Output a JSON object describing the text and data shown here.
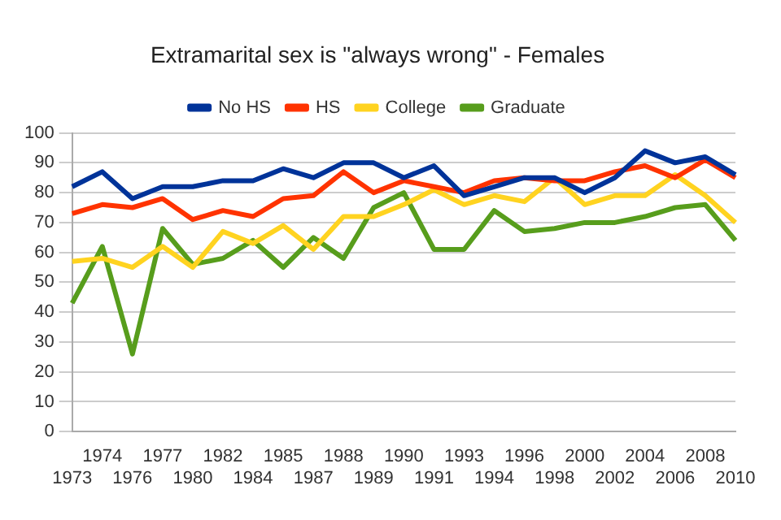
{
  "chart_data": {
    "type": "line",
    "title": "Extramarital sex is \"always wrong\" - Females",
    "categories": [
      "1973",
      "1974",
      "1976",
      "1977",
      "1980",
      "1982",
      "1984",
      "1985",
      "1987",
      "1988",
      "1989",
      "1990",
      "1991",
      "1993",
      "1994",
      "1996",
      "1998",
      "2000",
      "2002",
      "2004",
      "2006",
      "2008",
      "2010"
    ],
    "series": [
      {
        "name": "No HS",
        "color": "#003399",
        "values": [
          82,
          87,
          78,
          82,
          82,
          84,
          84,
          88,
          85,
          90,
          90,
          85,
          89,
          79,
          82,
          85,
          85,
          80,
          85,
          94,
          90,
          92,
          86
        ]
      },
      {
        "name": "HS",
        "color": "#ff3300",
        "values": [
          73,
          76,
          75,
          78,
          71,
          74,
          72,
          78,
          79,
          87,
          80,
          84,
          82,
          80,
          84,
          85,
          84,
          84,
          87,
          89,
          85,
          91,
          85
        ]
      },
      {
        "name": "College",
        "color": "#ffd320",
        "values": [
          57,
          58,
          55,
          62,
          55,
          67,
          63,
          69,
          61,
          72,
          72,
          76,
          81,
          76,
          79,
          77,
          85,
          76,
          79,
          79,
          86,
          79,
          70
        ]
      },
      {
        "name": "Graduate",
        "color": "#579d1c",
        "values": [
          43,
          62,
          26,
          68,
          56,
          58,
          64,
          55,
          65,
          58,
          75,
          80,
          61,
          61,
          74,
          67,
          68,
          70,
          70,
          72,
          75,
          76,
          64
        ]
      }
    ],
    "ylim": [
      0,
      100
    ],
    "yticks": [
      0,
      10,
      20,
      30,
      40,
      50,
      60,
      70,
      80,
      90,
      100
    ],
    "grid": "y",
    "legend": "top",
    "marker": "none",
    "line_style": "solid"
  }
}
